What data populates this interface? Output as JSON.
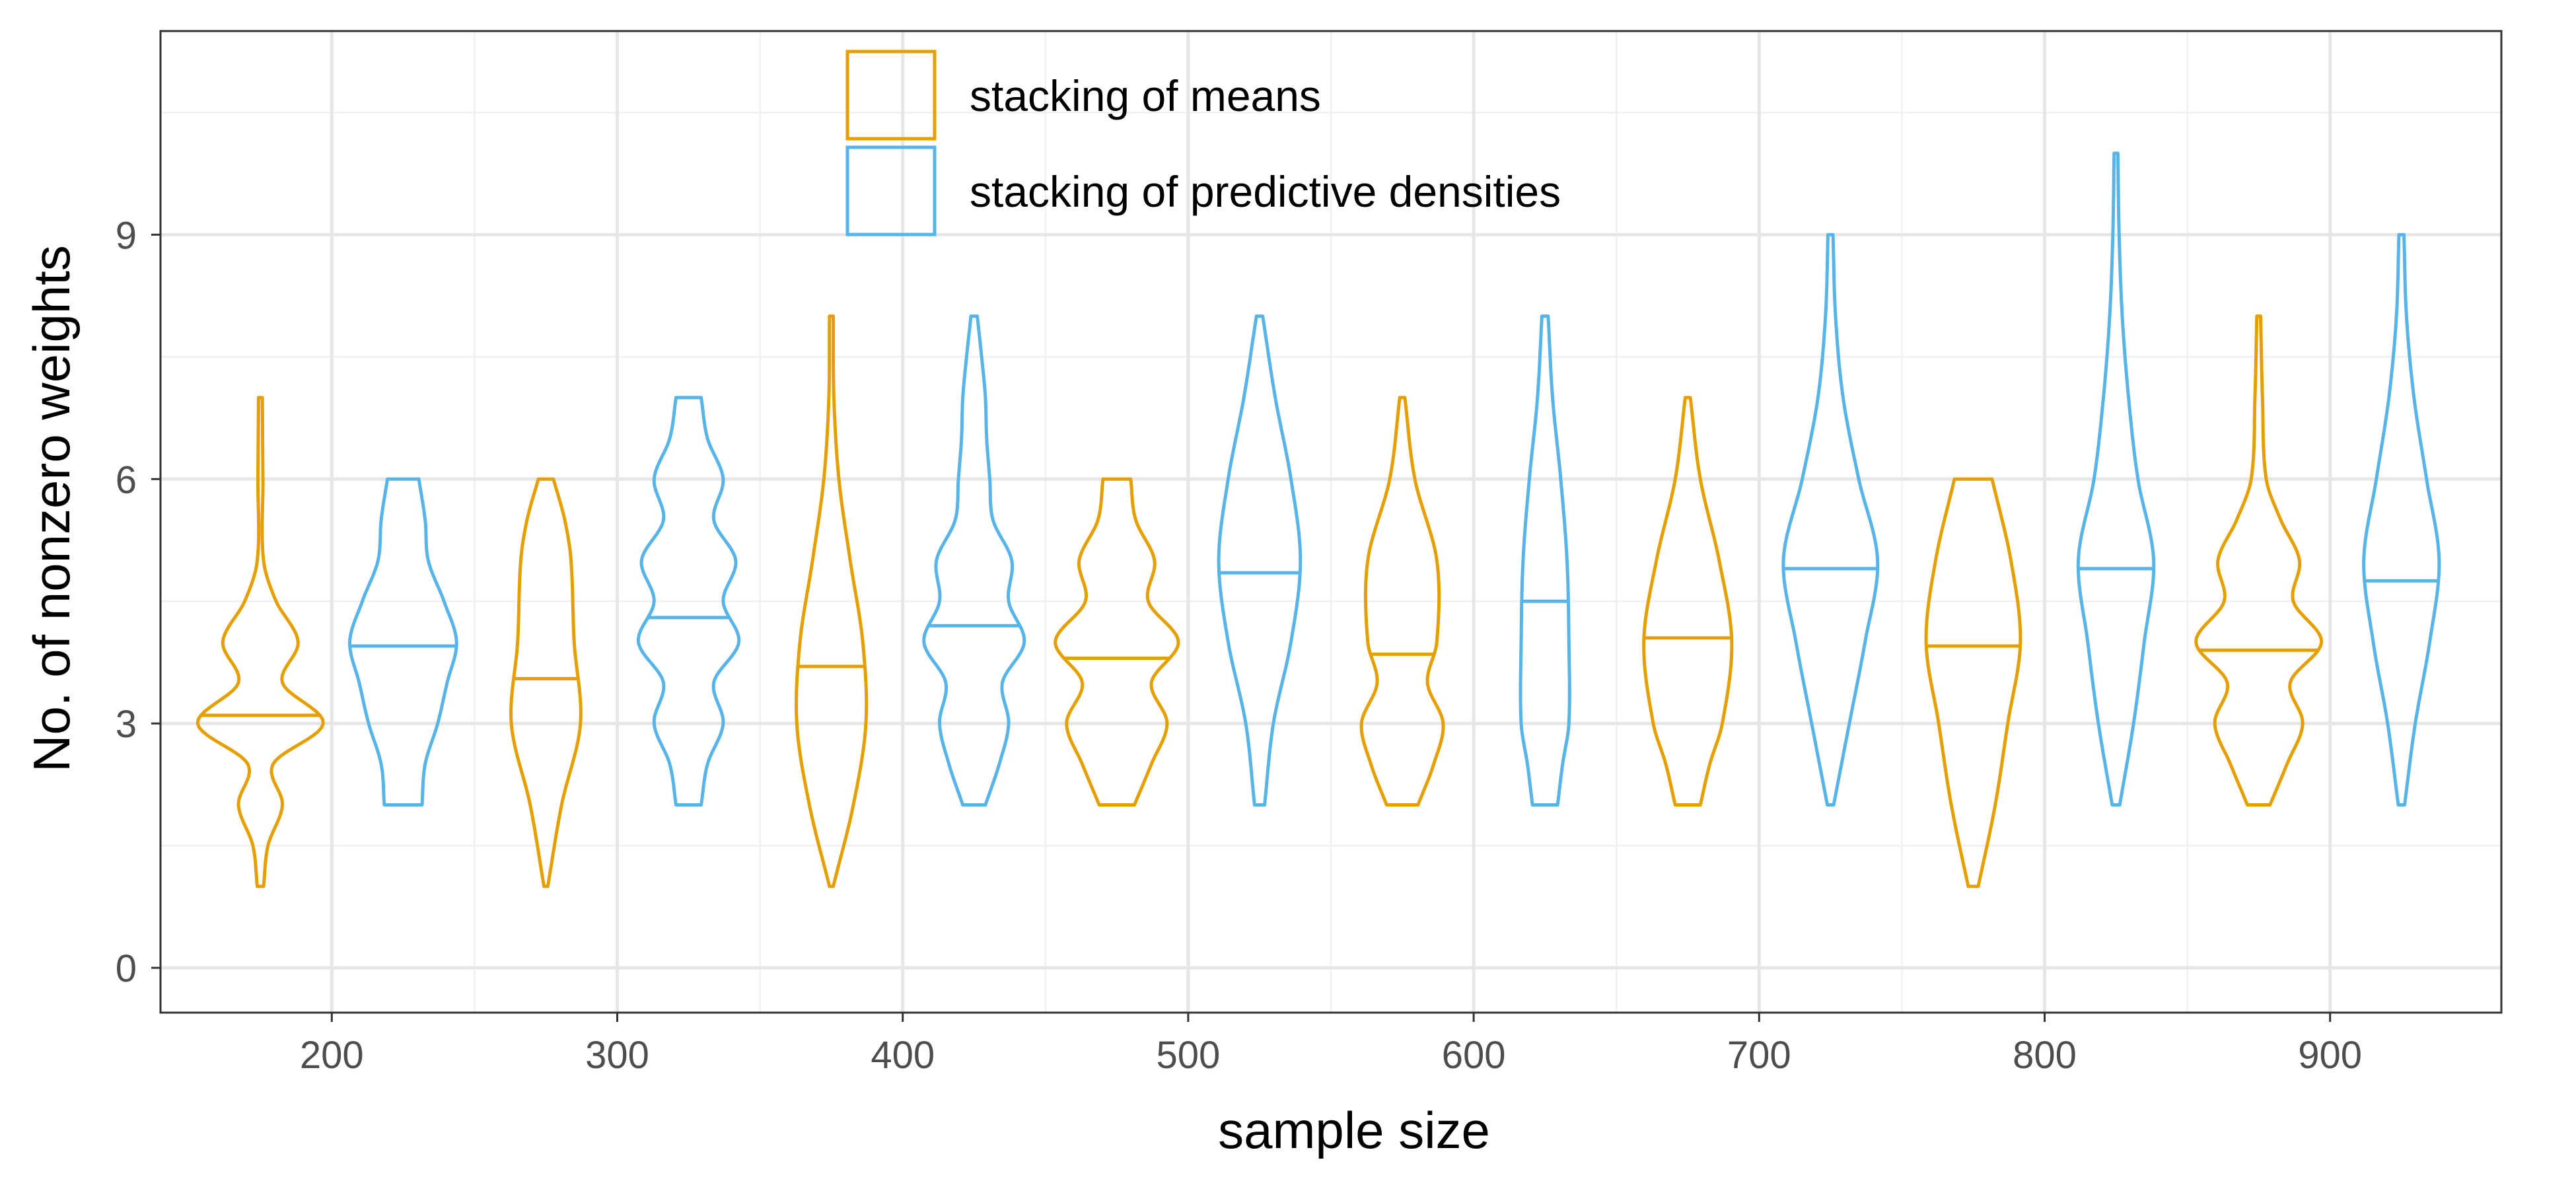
{
  "chart_data": {
    "type": "violin",
    "title": "",
    "xlabel": "sample size",
    "ylabel": "No. of nonzero weights",
    "xlim": [
      140,
      960
    ],
    "ylim": [
      -0.55,
      11.5
    ],
    "x_ticks": [
      200,
      300,
      400,
      500,
      600,
      700,
      800,
      900
    ],
    "x_tick_labels": [
      "200",
      "300",
      "400",
      "500",
      "600",
      "700",
      "800",
      "900"
    ],
    "y_ticks": [
      0,
      3,
      6,
      9
    ],
    "y_tick_labels": [
      "0",
      "3",
      "6",
      "9"
    ],
    "y_minor_ticks": [
      1.5,
      4.5,
      7.5,
      10.5
    ],
    "grid": true,
    "legend_position": "top-center inside",
    "violin_half_width": 22,
    "series": [
      {
        "name": "stacking of means",
        "color": "#E69F00",
        "offset": -25,
        "violins": [
          {
            "sample_size": 200,
            "median": 3.1,
            "profile": [
              [
                1,
                0.05
              ],
              [
                1.5,
                0.12
              ],
              [
                2,
                0.35
              ],
              [
                2.5,
                0.2
              ],
              [
                3,
                1.0
              ],
              [
                3.5,
                0.35
              ],
              [
                4,
                0.6
              ],
              [
                4.5,
                0.25
              ],
              [
                5,
                0.05
              ],
              [
                6,
                0.04
              ],
              [
                7,
                0.03
              ]
            ]
          },
          {
            "sample_size": 300,
            "median": 3.55,
            "profile": [
              [
                1,
                0.03
              ],
              [
                2,
                0.25
              ],
              [
                3,
                0.55
              ],
              [
                4,
                0.45
              ],
              [
                5,
                0.4
              ],
              [
                5.5,
                0.3
              ],
              [
                6,
                0.12
              ]
            ]
          },
          {
            "sample_size": 400,
            "median": 3.7,
            "profile": [
              [
                1,
                0.03
              ],
              [
                2,
                0.35
              ],
              [
                3,
                0.55
              ],
              [
                4,
                0.5
              ],
              [
                5,
                0.3
              ],
              [
                6,
                0.12
              ],
              [
                7,
                0.04
              ],
              [
                8,
                0.03
              ]
            ]
          },
          {
            "sample_size": 500,
            "median": 3.8,
            "profile": [
              [
                2,
                0.28
              ],
              [
                2.5,
                0.55
              ],
              [
                3,
                0.8
              ],
              [
                3.5,
                0.55
              ],
              [
                4,
                0.98
              ],
              [
                4.5,
                0.5
              ],
              [
                5,
                0.6
              ],
              [
                5.5,
                0.3
              ],
              [
                6,
                0.22
              ]
            ]
          },
          {
            "sample_size": 600,
            "median": 3.85,
            "profile": [
              [
                2,
                0.25
              ],
              [
                2.5,
                0.5
              ],
              [
                3,
                0.65
              ],
              [
                3.5,
                0.4
              ],
              [
                4,
                0.55
              ],
              [
                5,
                0.55
              ],
              [
                6,
                0.2
              ],
              [
                7,
                0.04
              ]
            ]
          },
          {
            "sample_size": 700,
            "median": 4.05,
            "profile": [
              [
                2,
                0.2
              ],
              [
                2.5,
                0.35
              ],
              [
                3,
                0.55
              ],
              [
                4,
                0.7
              ],
              [
                5,
                0.5
              ],
              [
                6,
                0.2
              ],
              [
                7,
                0.04
              ]
            ]
          },
          {
            "sample_size": 800,
            "median": 3.95,
            "profile": [
              [
                1,
                0.08
              ],
              [
                2,
                0.35
              ],
              [
                3,
                0.55
              ],
              [
                4,
                0.75
              ],
              [
                5,
                0.6
              ],
              [
                6,
                0.3
              ]
            ]
          },
          {
            "sample_size": 900,
            "median": 3.9,
            "profile": [
              [
                2,
                0.18
              ],
              [
                2.5,
                0.45
              ],
              [
                3,
                0.7
              ],
              [
                3.5,
                0.5
              ],
              [
                4,
                1.0
              ],
              [
                4.5,
                0.55
              ],
              [
                5,
                0.65
              ],
              [
                5.5,
                0.35
              ],
              [
                6,
                0.12
              ],
              [
                7,
                0.06
              ],
              [
                8,
                0.03
              ]
            ]
          }
        ]
      },
      {
        "name": "stacking of predictive densities",
        "color": "#56B4E9",
        "offset": 25,
        "violins": [
          {
            "sample_size": 200,
            "median": 3.95,
            "profile": [
              [
                2,
                0.3
              ],
              [
                2.5,
                0.35
              ],
              [
                3,
                0.55
              ],
              [
                3.5,
                0.7
              ],
              [
                4,
                0.85
              ],
              [
                4.5,
                0.65
              ],
              [
                5,
                0.4
              ],
              [
                5.5,
                0.35
              ],
              [
                6,
                0.25
              ]
            ]
          },
          {
            "sample_size": 300,
            "median": 4.3,
            "profile": [
              [
                2,
                0.2
              ],
              [
                2.5,
                0.3
              ],
              [
                3,
                0.55
              ],
              [
                3.5,
                0.4
              ],
              [
                4,
                0.8
              ],
              [
                4.5,
                0.55
              ],
              [
                5,
                0.75
              ],
              [
                5.5,
                0.4
              ],
              [
                6,
                0.55
              ],
              [
                6.5,
                0.3
              ],
              [
                7,
                0.2
              ]
            ]
          },
          {
            "sample_size": 400,
            "median": 4.2,
            "profile": [
              [
                2,
                0.18
              ],
              [
                2.5,
                0.4
              ],
              [
                3,
                0.55
              ],
              [
                3.5,
                0.45
              ],
              [
                4,
                0.8
              ],
              [
                4.5,
                0.55
              ],
              [
                5,
                0.6
              ],
              [
                5.5,
                0.3
              ],
              [
                6,
                0.25
              ],
              [
                6.5,
                0.2
              ],
              [
                7,
                0.18
              ],
              [
                7.5,
                0.12
              ],
              [
                8,
                0.05
              ]
            ]
          },
          {
            "sample_size": 500,
            "median": 4.85,
            "profile": [
              [
                2,
                0.08
              ],
              [
                3,
                0.22
              ],
              [
                4,
                0.5
              ],
              [
                5,
                0.65
              ],
              [
                6,
                0.5
              ],
              [
                7,
                0.25
              ],
              [
                8,
                0.05
              ]
            ]
          },
          {
            "sample_size": 600,
            "median": 4.5,
            "profile": [
              [
                2,
                0.2
              ],
              [
                2.5,
                0.28
              ],
              [
                3,
                0.38
              ],
              [
                4,
                0.38
              ],
              [
                5,
                0.35
              ],
              [
                6,
                0.25
              ],
              [
                7,
                0.12
              ],
              [
                8,
                0.05
              ]
            ]
          },
          {
            "sample_size": 700,
            "median": 4.9,
            "profile": [
              [
                2,
                0.05
              ],
              [
                3,
                0.3
              ],
              [
                4,
                0.55
              ],
              [
                5,
                0.75
              ],
              [
                6,
                0.45
              ],
              [
                7,
                0.2
              ],
              [
                8,
                0.08
              ],
              [
                9,
                0.04
              ]
            ]
          },
          {
            "sample_size": 800,
            "median": 4.9,
            "profile": [
              [
                2,
                0.06
              ],
              [
                3,
                0.28
              ],
              [
                4,
                0.45
              ],
              [
                5,
                0.6
              ],
              [
                6,
                0.35
              ],
              [
                7,
                0.2
              ],
              [
                8,
                0.1
              ],
              [
                9,
                0.05
              ],
              [
                10,
                0.03
              ]
            ]
          },
          {
            "sample_size": 900,
            "median": 4.75,
            "profile": [
              [
                2,
                0.05
              ],
              [
                3,
                0.22
              ],
              [
                4,
                0.45
              ],
              [
                5,
                0.6
              ],
              [
                6,
                0.4
              ],
              [
                7,
                0.2
              ],
              [
                8,
                0.08
              ],
              [
                9,
                0.04
              ]
            ]
          }
        ]
      }
    ]
  }
}
